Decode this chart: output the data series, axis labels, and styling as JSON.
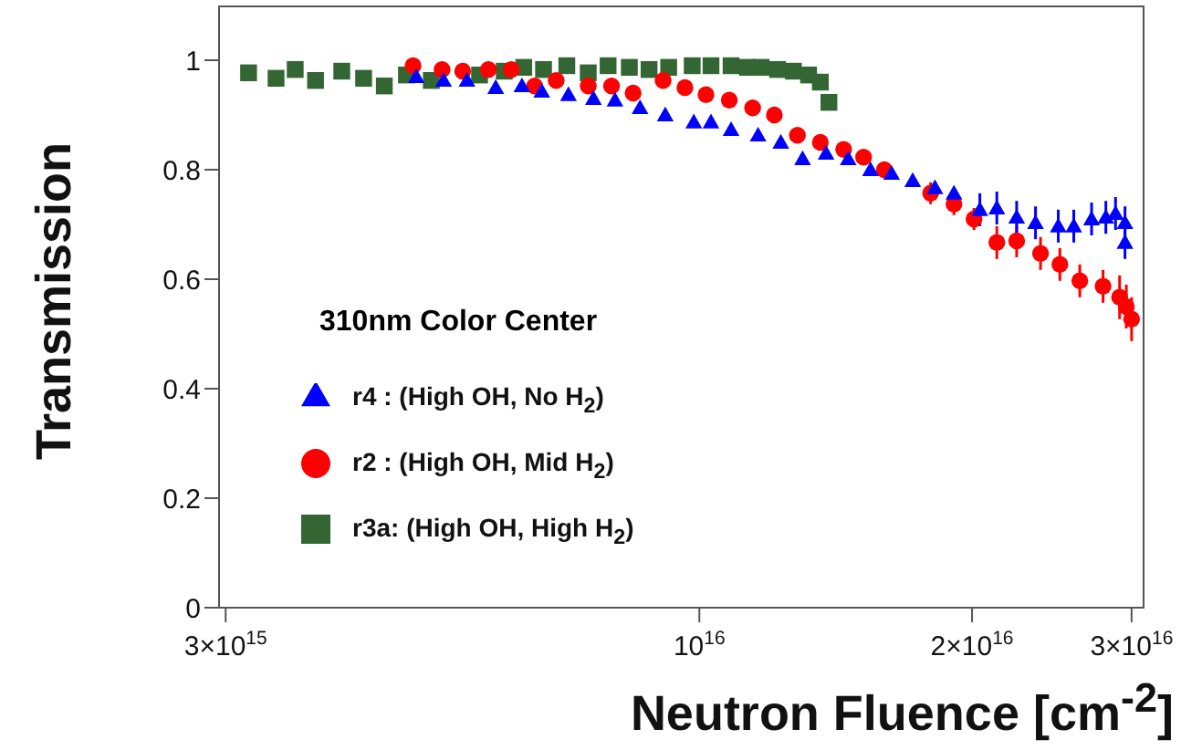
{
  "chart_data": {
    "type": "scatter",
    "xlabel": "Neutron Fluence [cm$^{-2}$]",
    "ylabel": "Transmission",
    "legend_title": "310nm Color Center",
    "log": "x",
    "xlim": [
      2950000000000000.0,
      3.1e+16
    ],
    "xticks": [
      {
        "value": 3000000000000000.0,
        "label": "3×10$^{15}$"
      },
      {
        "value": 1e+16,
        "label": "10$^{16}$"
      },
      {
        "value": 2e+16,
        "label": "2×10$^{16}$"
      },
      {
        "value": 3e+16,
        "label": "3×10$^{16}$"
      }
    ],
    "ylim": [
      0,
      1.1
    ],
    "yticks": [
      0,
      0.2,
      0.4,
      0.6,
      0.8,
      1
    ],
    "grid": false,
    "legend": "bottom left",
    "series": [
      {
        "name": "r4  : (High OH, No H$_{2}$)",
        "color": "#0000ff",
        "marker": "triangle",
        "x": [
          4870000000000000.0,
          5220000000000000.0,
          5540000000000000.0,
          5960000000000000.0,
          6370000000000000.0,
          6700000000000000.0,
          7170000000000000.0,
          7640000000000000.0,
          8070000000000000.0,
          8600000000000000.0,
          9170000000000000.0,
          9860000000000000.0,
          1.03e+16,
          1.084e+16,
          1.161e+16,
          1.23e+16,
          1.3e+16,
          1.38e+16,
          1.46e+16,
          1.545e+16,
          1.63e+16,
          1.72e+16,
          1.82e+16,
          1.91e+16,
          2.04e+16,
          2.13e+16,
          2.24e+16,
          2.35e+16,
          2.49e+16,
          2.59e+16,
          2.71e+16,
          2.81e+16,
          2.88e+16,
          2.95e+16,
          2.95e+16
        ],
        "values": [
          0.97,
          0.963,
          0.963,
          0.95,
          0.953,
          0.943,
          0.937,
          0.93,
          0.927,
          0.913,
          0.9,
          0.887,
          0.887,
          0.873,
          0.863,
          0.85,
          0.82,
          0.83,
          0.82,
          0.8,
          0.793,
          0.78,
          0.767,
          0.757,
          0.727,
          0.73,
          0.713,
          0.703,
          0.697,
          0.697,
          0.71,
          0.713,
          0.72,
          0.703,
          0.667
        ],
        "errors": [
          null,
          null,
          null,
          null,
          null,
          null,
          null,
          null,
          null,
          null,
          null,
          null,
          null,
          null,
          null,
          null,
          null,
          null,
          null,
          null,
          null,
          null,
          null,
          null,
          0.03,
          0.03,
          0.03,
          0.03,
          0.03,
          0.03,
          0.03,
          0.03,
          0.03,
          0.03,
          0.03
        ]
      },
      {
        "name": "r2  : (High OH, Mid H$_{2}$)",
        "color": "#ff0000",
        "marker": "circle",
        "x": [
          4830000000000000.0,
          5200000000000000.0,
          5480000000000000.0,
          5850000000000000.0,
          6200000000000000.0,
          6580000000000000.0,
          6950000000000000.0,
          7540000000000000.0,
          8000000000000000.0,
          8450000000000000.0,
          9120000000000000.0,
          9640000000000000.0,
          1.017e+16,
          1.079e+16,
          1.145e+16,
          1.21e+16,
          1.283e+16,
          1.36e+16,
          1.443e+16,
          1.518e+16,
          1.6e+16,
          1.71e+16,
          1.8e+16,
          1.91e+16,
          2.01e+16,
          2.13e+16,
          2.24e+16,
          2.38e+16,
          2.5e+16,
          2.63e+16,
          2.79e+16,
          2.91e+16,
          2.96e+16,
          3e+16
        ],
        "values": [
          0.99,
          0.983,
          0.98,
          0.983,
          0.983,
          0.953,
          0.963,
          0.953,
          0.953,
          0.94,
          0.963,
          0.95,
          0.937,
          0.927,
          0.913,
          0.9,
          0.863,
          0.85,
          0.837,
          0.823,
          0.8,
          null,
          0.757,
          0.737,
          0.71,
          0.667,
          0.67,
          0.647,
          0.627,
          0.597,
          0.587,
          0.567,
          0.55,
          0.527
        ],
        "errors": [
          null,
          null,
          null,
          null,
          null,
          null,
          null,
          null,
          null,
          null,
          null,
          null,
          null,
          null,
          null,
          null,
          null,
          null,
          null,
          null,
          null,
          null,
          0.02,
          0.02,
          0.02,
          0.03,
          0.03,
          0.03,
          0.03,
          0.03,
          0.03,
          0.04,
          0.04,
          0.04
        ]
      },
      {
        "name": "r3a: (High OH, High H$_{2}$)",
        "color": "#336633",
        "marker": "square",
        "x": [
          3180000000000000.0,
          3410000000000000.0,
          3580000000000000.0,
          3770000000000000.0,
          4030000000000000.0,
          4260000000000000.0,
          4490000000000000.0,
          4750000000000000.0,
          5060000000000000.0,
          5410000000000000.0,
          5720000000000000.0,
          6090000000000000.0,
          6400000000000000.0,
          6730000000000000.0,
          7140000000000000.0,
          7540000000000000.0,
          7930000000000000.0,
          8370000000000000.0,
          8800000000000000.0,
          9250000000000000.0,
          9820000000000000.0,
          1.03e+16,
          1.084e+16,
          1.13e+16,
          1.17e+16,
          1.22e+16,
          1.27e+16,
          1.32e+16,
          1.36e+16,
          1.39e+16
        ],
        "values": [
          0.977,
          0.967,
          0.983,
          0.963,
          0.98,
          0.967,
          0.953,
          0.973,
          0.963,
          null,
          0.973,
          0.98,
          0.987,
          0.983,
          0.99,
          0.977,
          0.99,
          0.987,
          0.983,
          0.987,
          0.99,
          0.99,
          0.99,
          0.987,
          0.987,
          0.983,
          0.98,
          0.973,
          0.96,
          0.923
        ]
      }
    ]
  }
}
